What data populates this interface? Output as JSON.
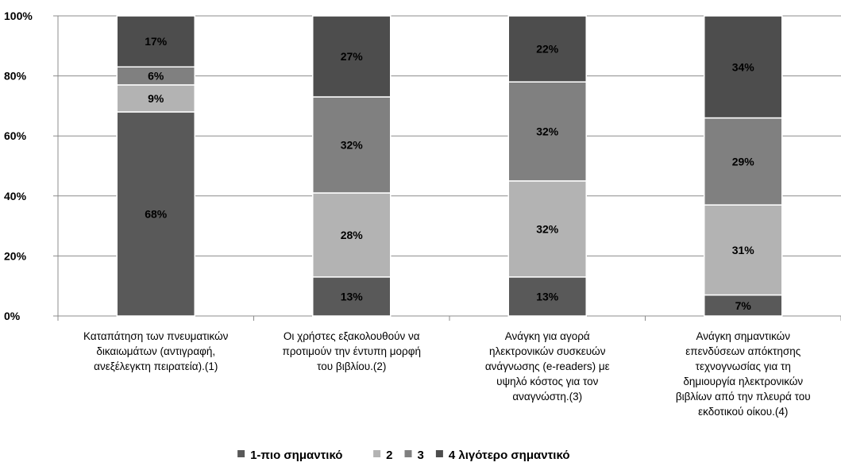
{
  "chart_data": {
    "type": "bar",
    "stacked": true,
    "percent": true,
    "categories": [
      [
        "Καταπάτηση των πνευματικών",
        "δικαιωμάτων (αντιγραφή,",
        "ανεξέλεγκτη πειρατεία).(1)"
      ],
      [
        "Οι χρήστες εξακολουθούν να",
        "προτιμούν την έντυπη μορφή",
        "του βιβλίου.(2)"
      ],
      [
        "Ανάγκη για αγορά",
        "ηλεκτρονικών συσκευών",
        "ανάγνωσης (e-readers) με",
        "υψηλό κόστος για τον",
        "αναγνώστη.(3)"
      ],
      [
        "Ανάγκη σημαντικών",
        "επενδύσεων απόκτησης",
        "τεχνογνωσίας για τη",
        "δημιουργία ηλεκτρονικών",
        "βιβλίων από την πλευρά του",
        "εκδοτικού οίκου.(4)"
      ]
    ],
    "series": [
      {
        "name": "1-πιο σημαντικό",
        "color": "#595959",
        "values": [
          68,
          13,
          13,
          7
        ]
      },
      {
        "name": "2",
        "color": "#b3b3b3",
        "values": [
          9,
          28,
          32,
          31
        ]
      },
      {
        "name": "3",
        "color": "#808080",
        "values": [
          6,
          32,
          32,
          29
        ]
      },
      {
        "name": "4 λιγότερο σημαντικό",
        "color": "#4d4d4d",
        "values": [
          17,
          27,
          22,
          34
        ]
      }
    ],
    "cumulative_top": [
      [
        68,
        77,
        83,
        100
      ],
      [
        13,
        41,
        73,
        100
      ],
      [
        13,
        45,
        78,
        100
      ],
      [
        7,
        37,
        66,
        100
      ]
    ],
    "data_labels": [
      [
        "68%",
        "9%",
        "6%",
        "17%"
      ],
      [
        "13%",
        "28%",
        "32%",
        "27%"
      ],
      [
        "13%",
        "32%",
        "32%",
        "22%"
      ],
      [
        "7%",
        "31%",
        "29%",
        "34%"
      ]
    ],
    "y_ticks": [
      "0%",
      "20%",
      "40%",
      "60%",
      "80%",
      "100%"
    ],
    "ylim": [
      0,
      100
    ],
    "grid": true,
    "legend_position": "bottom",
    "gridline_color": "#8c8c8c"
  }
}
